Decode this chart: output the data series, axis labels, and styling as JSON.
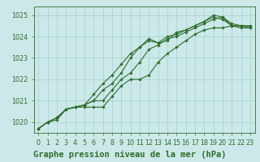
{
  "title": "Graphe pression niveau de la mer (hPa)",
  "xlabel_hours": [
    0,
    1,
    2,
    3,
    4,
    5,
    6,
    7,
    8,
    9,
    10,
    11,
    12,
    13,
    14,
    15,
    16,
    17,
    18,
    19,
    20,
    21,
    22,
    23
  ],
  "series": [
    {
      "y": [
        1019.7,
        1020.0,
        1020.1,
        1020.6,
        1020.7,
        1020.7,
        1020.7,
        1020.7,
        1021.2,
        1021.7,
        1022.0,
        1022.0,
        1022.2,
        1022.8,
        1023.2,
        1023.5,
        1023.8,
        1024.1,
        1024.3,
        1024.4,
        1024.4,
        1024.5,
        1024.5,
        1024.4
      ]
    },
    {
      "y": [
        1019.7,
        1020.0,
        1020.2,
        1020.6,
        1020.7,
        1020.8,
        1021.0,
        1021.0,
        1021.5,
        1022.0,
        1022.3,
        1022.8,
        1023.4,
        1023.6,
        1023.9,
        1024.0,
        1024.2,
        1024.4,
        1024.6,
        1024.8,
        1024.9,
        1024.6,
        1024.5,
        1024.5
      ]
    },
    {
      "y": [
        1019.7,
        1020.0,
        1020.2,
        1020.6,
        1020.7,
        1020.8,
        1021.0,
        1021.5,
        1021.8,
        1022.3,
        1023.0,
        1023.5,
        1023.8,
        1023.7,
        1024.0,
        1024.1,
        1024.3,
        1024.5,
        1024.7,
        1024.9,
        1024.8,
        1024.5,
        1024.5,
        1024.5
      ]
    },
    {
      "y": [
        1019.7,
        1020.0,
        1020.2,
        1020.6,
        1020.7,
        1020.8,
        1021.3,
        1021.8,
        1022.2,
        1022.7,
        1023.2,
        1023.5,
        1023.9,
        1023.7,
        1023.8,
        1024.2,
        1024.3,
        1024.5,
        1024.7,
        1025.0,
        1024.9,
        1024.5,
        1024.4,
        1024.4
      ]
    }
  ],
  "line_color": "#2d6e2d",
  "linewidth": 0.8,
  "marker": "D",
  "markersize": 1.8,
  "ylim": [
    1019.5,
    1025.4
  ],
  "yticks": [
    1020,
    1021,
    1022,
    1023,
    1024,
    1025
  ],
  "bg_color": "#cce8e8",
  "grid_color": "#99cccc",
  "axis_color": "#2d6e2d",
  "text_color": "#2d6e2d",
  "title_fontsize": 7.5,
  "tick_fontsize": 5.8
}
